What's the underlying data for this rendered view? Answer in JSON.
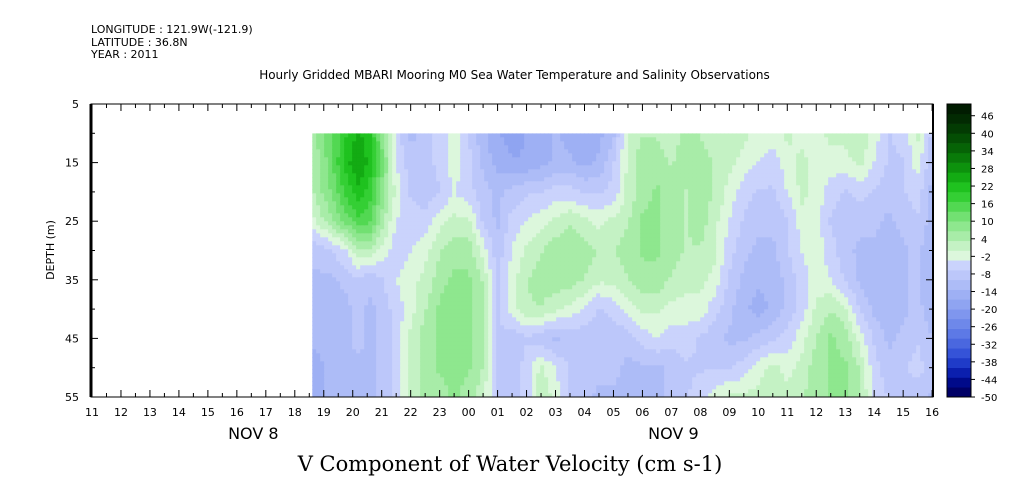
{
  "header": {
    "longitude": "LONGITUDE : 121.9W(-121.9)",
    "latitude": "LATITUDE : 36.8N",
    "year": "YEAR : 2011"
  },
  "title": "Hourly Gridded MBARI Mooring M0 Sea Water Temperature and Salinity Observations",
  "bottom_title": "V Component of Water Velocity (cm s-1)",
  "chart_data": {
    "type": "heatmap",
    "ylabel": "DEPTH (m)",
    "y_ticks": [
      "5",
      "15",
      "25",
      "35",
      "45",
      "55"
    ],
    "ylim": [
      5,
      55
    ],
    "y_inverted": true,
    "x_tick_labels": [
      "11",
      "12",
      "13",
      "14",
      "15",
      "16",
      "17",
      "18",
      "19",
      "20",
      "21",
      "22",
      "23",
      "00",
      "01",
      "02",
      "03",
      "04",
      "05",
      "06",
      "07",
      "08",
      "09",
      "10",
      "11",
      "12",
      "13",
      "14",
      "15",
      "16"
    ],
    "x_date_labels": [
      {
        "text": "NOV  8",
        "hour_index": 5.5
      },
      {
        "text": "NOV  9",
        "hour_index": 20
      }
    ],
    "data_start_hour_index": 7.6,
    "data_end_hour_index": 29.1,
    "data_top_depth": 10,
    "colorbar": {
      "labels": [
        "46",
        "40",
        "34",
        "28",
        "22",
        "16",
        "10",
        "4",
        "-2",
        "-8",
        "-14",
        "-20",
        "-26",
        "-32",
        "-38",
        "-44",
        "-50"
      ],
      "min": -50,
      "max": 50,
      "neg_colors": [
        "#000066",
        "#000a8a",
        "#0b1fae",
        "#1f3bc8",
        "#3553d8",
        "#4a67df",
        "#5d79e6",
        "#6e88ea",
        "#7f96ee",
        "#8fa4f1",
        "#9eb0f4",
        "#adbcf7",
        "#bcc7fa",
        "#cad3fc"
      ],
      "pos_colors": [
        "#dcf7dc",
        "#c4f2c4",
        "#a8eca8",
        "#8ee78e",
        "#72e072",
        "#52d852",
        "#34cf34",
        "#1fc21f",
        "#13ab13",
        "#0d920d",
        "#097a09",
        "#066306",
        "#044e04",
        "#033b03",
        "#022a02",
        "#011c01"
      ]
    },
    "field_profiles": {
      "depths": [
        10,
        15,
        20,
        25,
        30,
        35,
        40,
        45,
        50,
        55
      ],
      "hours": [
        7.6,
        8.2,
        8.8,
        9.2,
        9.6,
        10.0,
        10.5,
        11.0,
        11.5,
        12.0,
        12.5,
        13.0,
        13.5,
        14.0,
        14.5,
        15.0,
        15.5,
        16.0,
        16.5,
        17.0,
        17.5,
        18.0,
        18.5,
        19.0,
        19.5,
        20.0,
        20.5,
        21.0,
        21.5,
        22.0,
        22.5,
        23.0,
        23.5,
        24.0,
        24.5,
        25.0,
        25.5,
        26.0,
        26.5,
        27.0,
        27.5,
        28.0,
        28.5,
        29.1
      ],
      "values": [
        [
          8,
          14,
          22,
          26,
          22,
          12,
          -2,
          -8,
          -6,
          -2,
          2,
          -4,
          -10,
          -14,
          -16,
          -14,
          -12,
          -10,
          -12,
          -14,
          -12,
          -8,
          4,
          6,
          6,
          4,
          8,
          6,
          4,
          6,
          4,
          2,
          2,
          4,
          2,
          2,
          4,
          4,
          6,
          2,
          -4,
          -2,
          4,
          -6
        ],
        [
          6,
          14,
          24,
          28,
          24,
          14,
          0,
          -6,
          -6,
          -2,
          2,
          -2,
          -8,
          -12,
          -14,
          -14,
          -12,
          -10,
          -10,
          -12,
          -10,
          -4,
          4,
          8,
          8,
          6,
          8,
          8,
          6,
          4,
          2,
          0,
          -2,
          2,
          4,
          2,
          2,
          2,
          4,
          0,
          -4,
          -4,
          2,
          -8
        ],
        [
          6,
          12,
          20,
          24,
          20,
          12,
          2,
          -4,
          -6,
          -4,
          0,
          -2,
          -6,
          -8,
          -6,
          -4,
          -4,
          -2,
          -2,
          -4,
          -4,
          -2,
          4,
          8,
          10,
          8,
          6,
          8,
          6,
          2,
          -2,
          -4,
          -4,
          0,
          4,
          2,
          -2,
          -4,
          -2,
          -4,
          -6,
          -4,
          -2,
          -10
        ],
        [
          2,
          8,
          14,
          18,
          16,
          8,
          0,
          -2,
          -2,
          2,
          4,
          4,
          -4,
          -8,
          -2,
          0,
          2,
          4,
          6,
          4,
          2,
          4,
          6,
          10,
          10,
          8,
          6,
          8,
          4,
          0,
          -4,
          -6,
          -6,
          -4,
          2,
          2,
          -4,
          -6,
          -6,
          -6,
          -8,
          -6,
          -4,
          -10
        ],
        [
          -6,
          -4,
          0,
          6,
          6,
          2,
          -2,
          0,
          2,
          6,
          8,
          8,
          2,
          -6,
          0,
          4,
          6,
          8,
          8,
          8,
          6,
          6,
          8,
          10,
          10,
          8,
          6,
          6,
          4,
          -2,
          -6,
          -8,
          -8,
          -4,
          0,
          2,
          -2,
          -6,
          -8,
          -8,
          -10,
          -8,
          -6,
          -12
        ],
        [
          -8,
          -8,
          -6,
          -4,
          -6,
          -4,
          0,
          2,
          4,
          8,
          10,
          10,
          6,
          -4,
          2,
          6,
          8,
          8,
          8,
          6,
          4,
          4,
          6,
          8,
          8,
          6,
          4,
          4,
          2,
          -4,
          -8,
          -10,
          -10,
          -6,
          -2,
          2,
          0,
          -4,
          -8,
          -10,
          -10,
          -8,
          -6,
          -12
        ],
        [
          -10,
          -10,
          -8,
          -6,
          -8,
          -6,
          -2,
          2,
          6,
          10,
          12,
          10,
          8,
          -4,
          2,
          6,
          6,
          4,
          2,
          0,
          -4,
          -2,
          2,
          4,
          4,
          2,
          2,
          2,
          -2,
          -6,
          -10,
          -12,
          -10,
          -6,
          -2,
          4,
          6,
          4,
          -4,
          -8,
          -10,
          -8,
          -6,
          -10
        ],
        [
          -10,
          -10,
          -8,
          -6,
          -8,
          -6,
          -2,
          4,
          8,
          10,
          12,
          10,
          8,
          -4,
          -6,
          -4,
          -6,
          -8,
          -6,
          -6,
          -6,
          -6,
          -6,
          -2,
          0,
          -2,
          -2,
          -4,
          -6,
          -8,
          -8,
          -6,
          -4,
          -2,
          2,
          6,
          10,
          8,
          2,
          -4,
          -8,
          -6,
          -4,
          -8
        ],
        [
          -12,
          -10,
          -8,
          -8,
          -8,
          -6,
          -2,
          4,
          8,
          10,
          10,
          10,
          6,
          -4,
          -6,
          -2,
          4,
          0,
          -4,
          -4,
          -6,
          -6,
          -8,
          -8,
          -8,
          -6,
          -4,
          -4,
          -4,
          -4,
          -2,
          2,
          4,
          2,
          4,
          8,
          10,
          10,
          6,
          -2,
          -6,
          -4,
          -2,
          -6
        ],
        [
          -12,
          -10,
          -10,
          -8,
          -8,
          -6,
          -2,
          4,
          8,
          8,
          10,
          8,
          4,
          -4,
          -6,
          -2,
          6,
          2,
          -4,
          -6,
          -8,
          -8,
          -8,
          -8,
          -8,
          -6,
          -4,
          -2,
          2,
          4,
          4,
          4,
          6,
          4,
          6,
          8,
          10,
          10,
          6,
          0,
          -4,
          -6,
          -6,
          -8
        ]
      ]
    }
  }
}
